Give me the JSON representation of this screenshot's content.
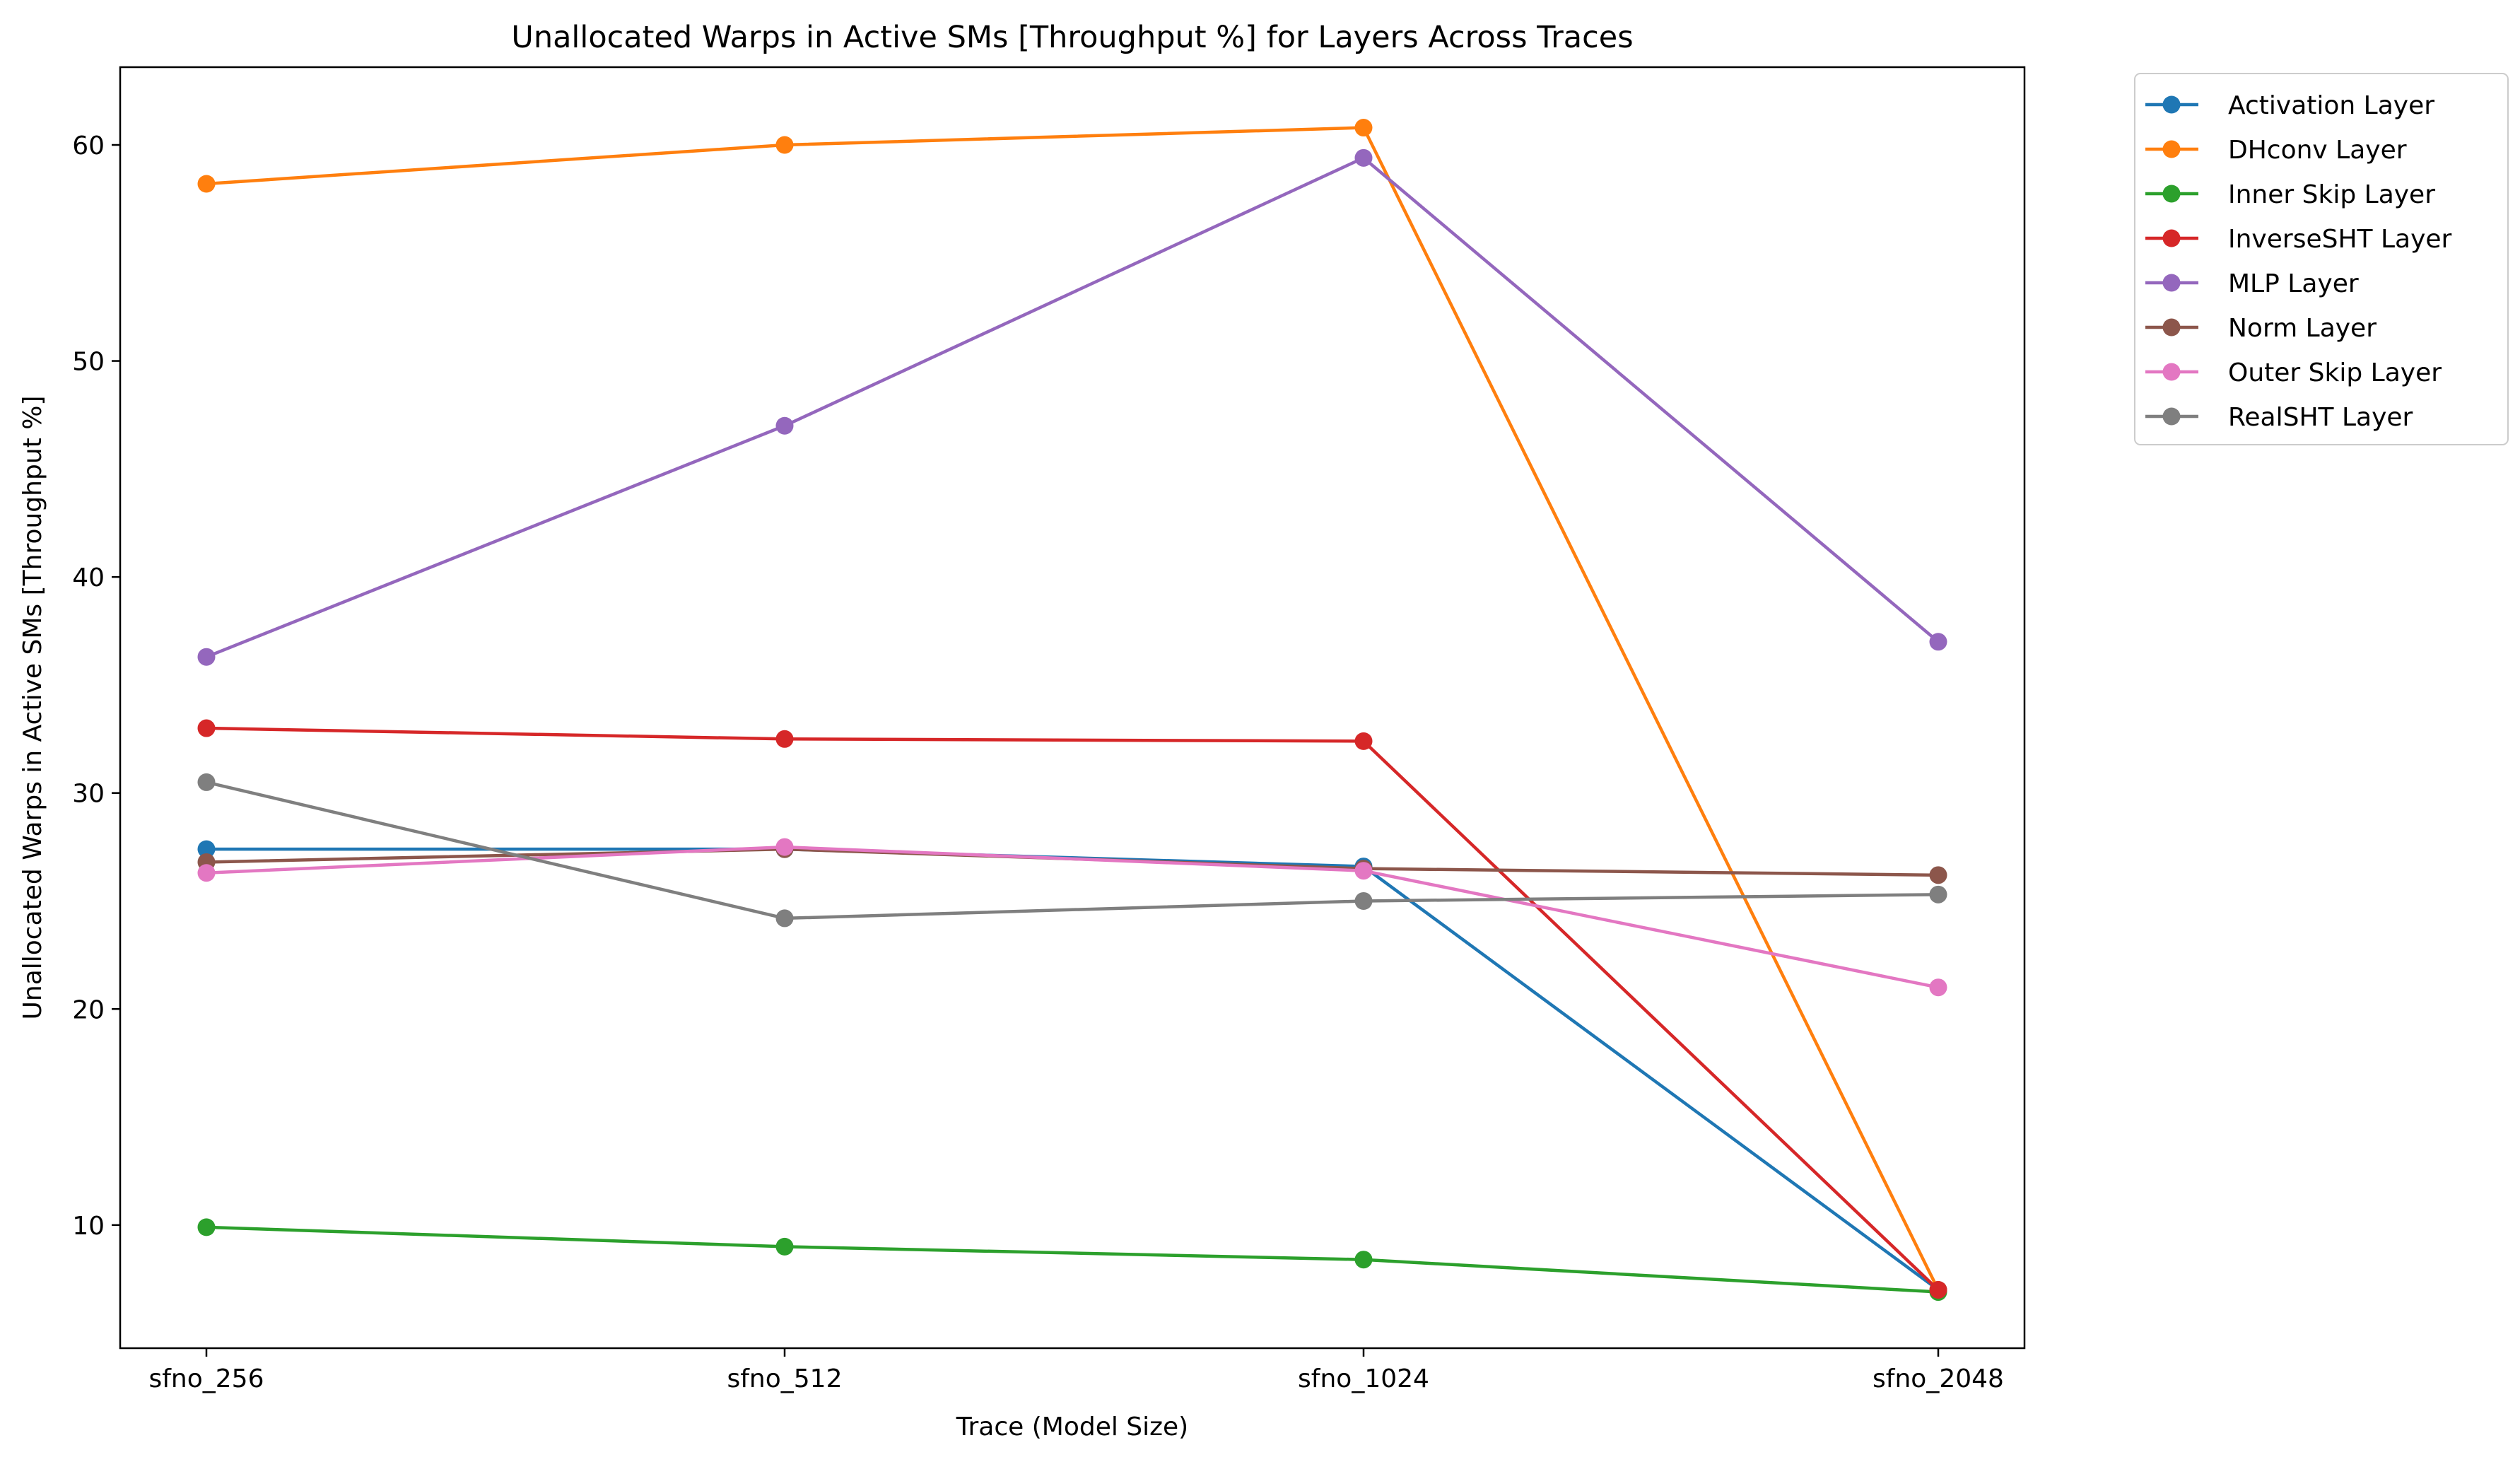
{
  "chart_data": {
    "type": "line",
    "title": "Unallocated Warps in Active SMs [Throughput %] for Layers Across Traces",
    "xlabel": "Trace (Model Size)",
    "ylabel": "Unallocated Warps in Active SMs [Throughput %]",
    "categories": [
      "sfno_256",
      "sfno_512",
      "sfno_1024",
      "sfno_2048"
    ],
    "ylim": [
      4.3,
      63.6
    ],
    "yticks": [
      "10",
      "20",
      "30",
      "40",
      "50",
      "60"
    ],
    "grid": false,
    "legend_position": "outside-top-right",
    "markers": "circle",
    "series": [
      {
        "name": "Activation Layer",
        "color": "#1f77b4",
        "values": [
          27.4,
          27.4,
          26.6,
          7.0
        ]
      },
      {
        "name": "DHconv Layer",
        "color": "#ff7f0e",
        "values": [
          58.2,
          60.0,
          60.8,
          7.0
        ]
      },
      {
        "name": "Inner Skip Layer",
        "color": "#2ca02c",
        "values": [
          9.9,
          9.0,
          8.4,
          6.9
        ]
      },
      {
        "name": "InverseSHT Layer",
        "color": "#d62728",
        "values": [
          33.0,
          32.5,
          32.4,
          7.0
        ]
      },
      {
        "name": "MLP Layer",
        "color": "#9467bd",
        "values": [
          36.3,
          47.0,
          59.4,
          37.0
        ]
      },
      {
        "name": "Norm Layer",
        "color": "#8c564b",
        "values": [
          26.8,
          27.4,
          26.5,
          26.2
        ]
      },
      {
        "name": "Outer Skip Layer",
        "color": "#e377c2",
        "values": [
          26.3,
          27.5,
          26.4,
          21.0
        ]
      },
      {
        "name": "RealSHT Layer",
        "color": "#7f7f7f",
        "values": [
          30.5,
          24.2,
          25.0,
          25.3
        ]
      }
    ]
  }
}
